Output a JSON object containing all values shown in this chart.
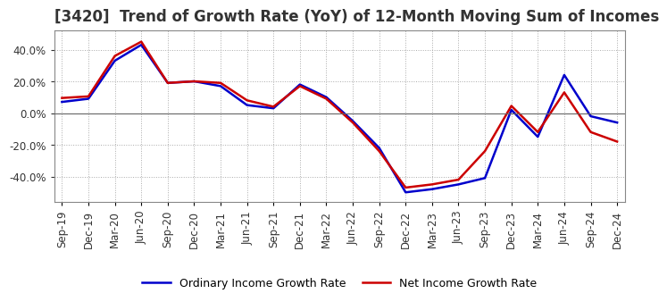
{
  "title": "[3420]  Trend of Growth Rate (YoY) of 12-Month Moving Sum of Incomes",
  "x_labels": [
    "Sep-19",
    "Dec-19",
    "Mar-20",
    "Jun-20",
    "Sep-20",
    "Dec-20",
    "Mar-21",
    "Jun-21",
    "Sep-21",
    "Dec-21",
    "Mar-22",
    "Jun-22",
    "Sep-22",
    "Dec-22",
    "Mar-23",
    "Jun-23",
    "Sep-23",
    "Dec-23",
    "Mar-24",
    "Jun-24",
    "Sep-24",
    "Dec-24"
  ],
  "ordinary_income": [
    7.0,
    9.0,
    33.0,
    43.0,
    19.0,
    20.0,
    17.0,
    5.0,
    3.0,
    18.0,
    10.0,
    -5.0,
    -22.0,
    -50.0,
    -48.0,
    -45.0,
    -41.0,
    2.0,
    -15.0,
    24.0,
    -2.0,
    -6.0
  ],
  "net_income": [
    9.5,
    10.5,
    36.0,
    45.0,
    19.0,
    20.0,
    19.0,
    8.0,
    4.0,
    17.0,
    9.0,
    -6.0,
    -24.0,
    -47.0,
    -45.0,
    -42.0,
    -24.0,
    4.5,
    -12.0,
    13.0,
    -12.0,
    -18.0
  ],
  "ordinary_color": "#0000cc",
  "net_color": "#cc0000",
  "background_color": "#ffffff",
  "grid_color": "#aaaaaa",
  "ylim": [
    -56,
    52
  ],
  "yticks": [
    -40.0,
    -20.0,
    0.0,
    20.0,
    40.0
  ],
  "legend_ordinary": "Ordinary Income Growth Rate",
  "legend_net": "Net Income Growth Rate",
  "title_fontsize": 12,
  "axis_fontsize": 8.5,
  "legend_fontsize": 9,
  "title_color": "#333333"
}
